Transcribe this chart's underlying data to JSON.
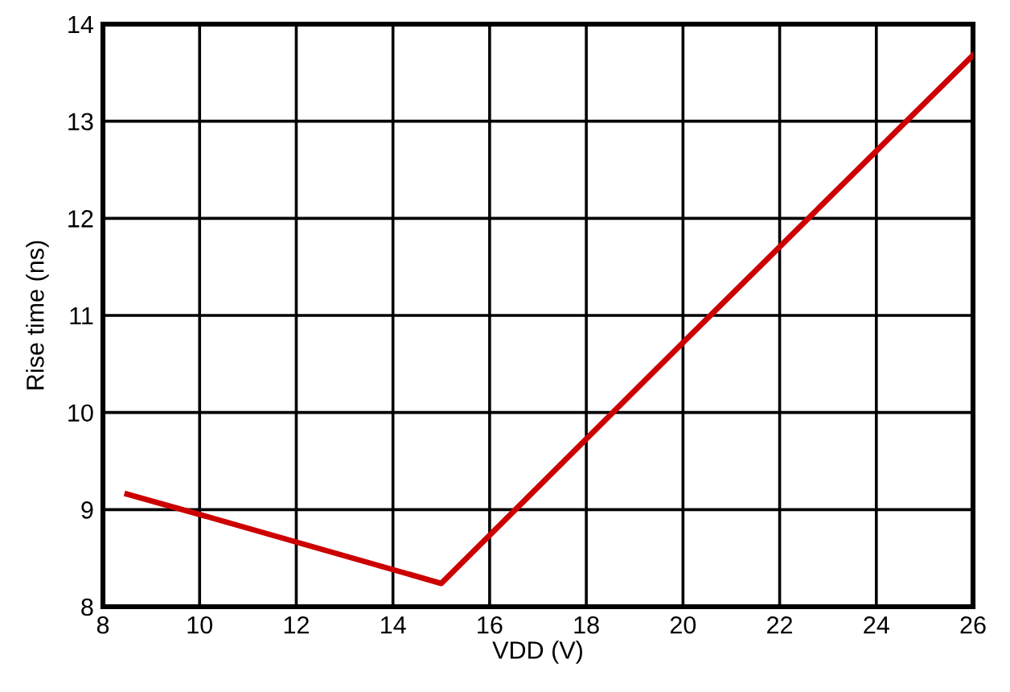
{
  "chart_data": {
    "type": "line",
    "xlabel": "VDD (V)",
    "ylabel": "Rise time (ns)",
    "x": [
      8.5,
      10,
      15,
      20,
      26
    ],
    "series": [
      {
        "color": "#cc0000",
        "values": [
          9.16,
          8.95,
          8.24,
          10.72,
          13.68
        ]
      }
    ],
    "xlim": [
      8,
      26
    ],
    "xticks": [
      8,
      10,
      12,
      14,
      16,
      18,
      20,
      22,
      24,
      26
    ],
    "ylim": [
      8,
      14
    ],
    "yticks": [
      8,
      9,
      10,
      11,
      12,
      13,
      14
    ],
    "grid": true,
    "marker": "none",
    "line_style": "solid"
  }
}
